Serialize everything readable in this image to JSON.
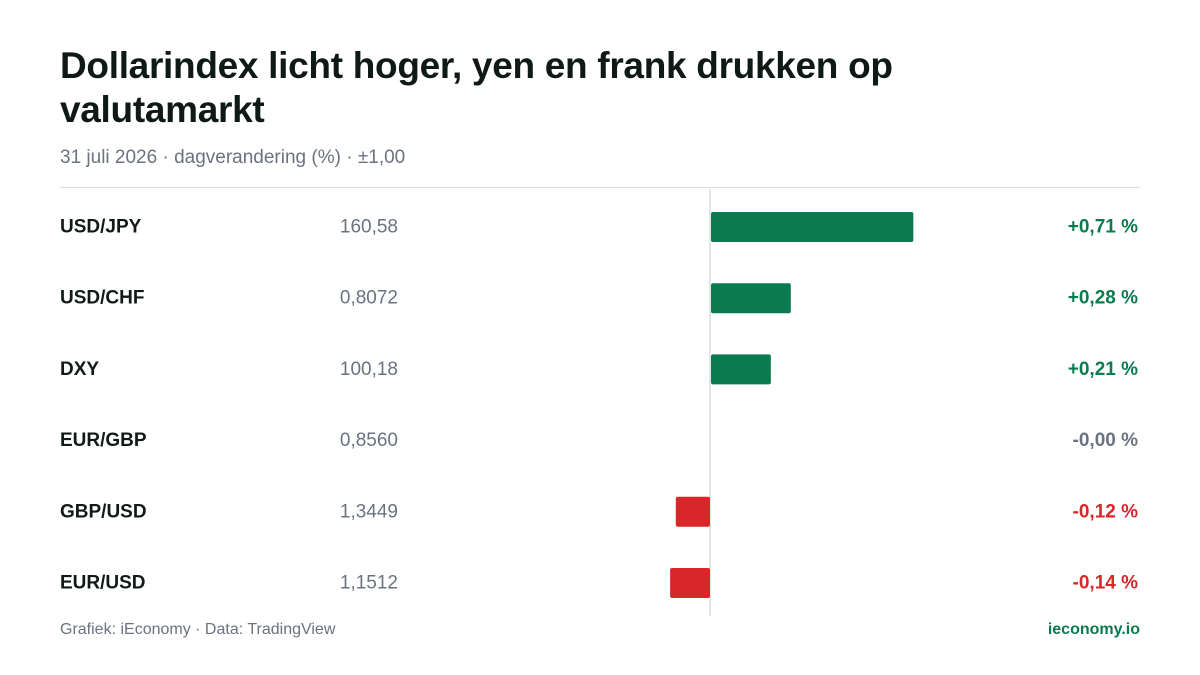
{
  "header": {
    "title": "Dollarindex licht hoger, yen en frank drukken op valutamarkt",
    "subtitle": "31 juli 2026 · dagverandering (%) · ±1,00"
  },
  "footer": {
    "source": "Grafiek: iEconomy · Data: TradingView",
    "brand": "ieconomy.io"
  },
  "colors": {
    "positive": "#0c7a4f",
    "negative": "#d9262b",
    "neutral": "#6b7280",
    "zero_line": "#d9dcdf"
  },
  "chart_data": {
    "type": "bar",
    "orientation": "horizontal",
    "xlim": [
      -1.0,
      1.0
    ],
    "grid": false,
    "categories": [
      "USD/JPY",
      "USD/CHF",
      "DXY",
      "EUR/GBP",
      "GBP/USD",
      "EUR/USD"
    ],
    "prices": [
      "160,58",
      "0,8072",
      "100,18",
      "0,8560",
      "1,3449",
      "1,1512"
    ],
    "values": [
      0.71,
      0.28,
      0.21,
      0.0,
      -0.12,
      -0.14
    ],
    "value_labels": [
      "+0,71 %",
      "+0,28 %",
      "+0,21 %",
      "-0,00 %",
      "-0,12 %",
      "-0,14 %"
    ]
  }
}
